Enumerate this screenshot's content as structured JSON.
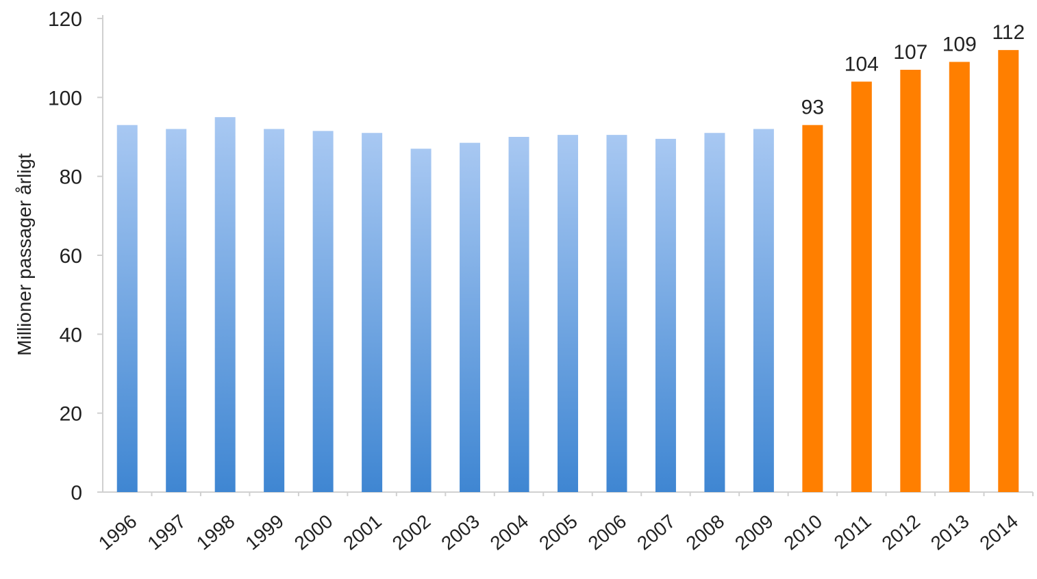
{
  "chart_data": {
    "type": "bar",
    "title": "",
    "xlabel": "",
    "ylabel": "Millioner passager årligt",
    "ylim": [
      0,
      120
    ],
    "yticks": [
      0,
      20,
      40,
      60,
      80,
      100,
      120
    ],
    "grid": false,
    "categories": [
      "1996",
      "1997",
      "1998",
      "1999",
      "2000",
      "2001",
      "2002",
      "2003",
      "2004",
      "2005",
      "2006",
      "2007",
      "2008",
      "2009",
      "2010",
      "2011",
      "2012",
      "2013",
      "2014"
    ],
    "values": [
      93,
      92,
      95,
      92,
      91.5,
      91,
      87,
      88.5,
      90,
      90.5,
      90.5,
      89.5,
      91,
      92,
      93,
      104,
      107,
      109,
      112
    ],
    "data_labels": [
      "",
      "",
      "",
      "",
      "",
      "",
      "",
      "",
      "",
      "",
      "",
      "",
      "",
      "",
      "93",
      "104",
      "107",
      "109",
      "112"
    ],
    "highlight_from_index": 14,
    "colors": {
      "historical_top": "#a8c8f2",
      "historical_bottom": "#3f86d2",
      "highlight": "#ff7f00",
      "axis": "#d0d0d0",
      "text": "#222222"
    }
  }
}
